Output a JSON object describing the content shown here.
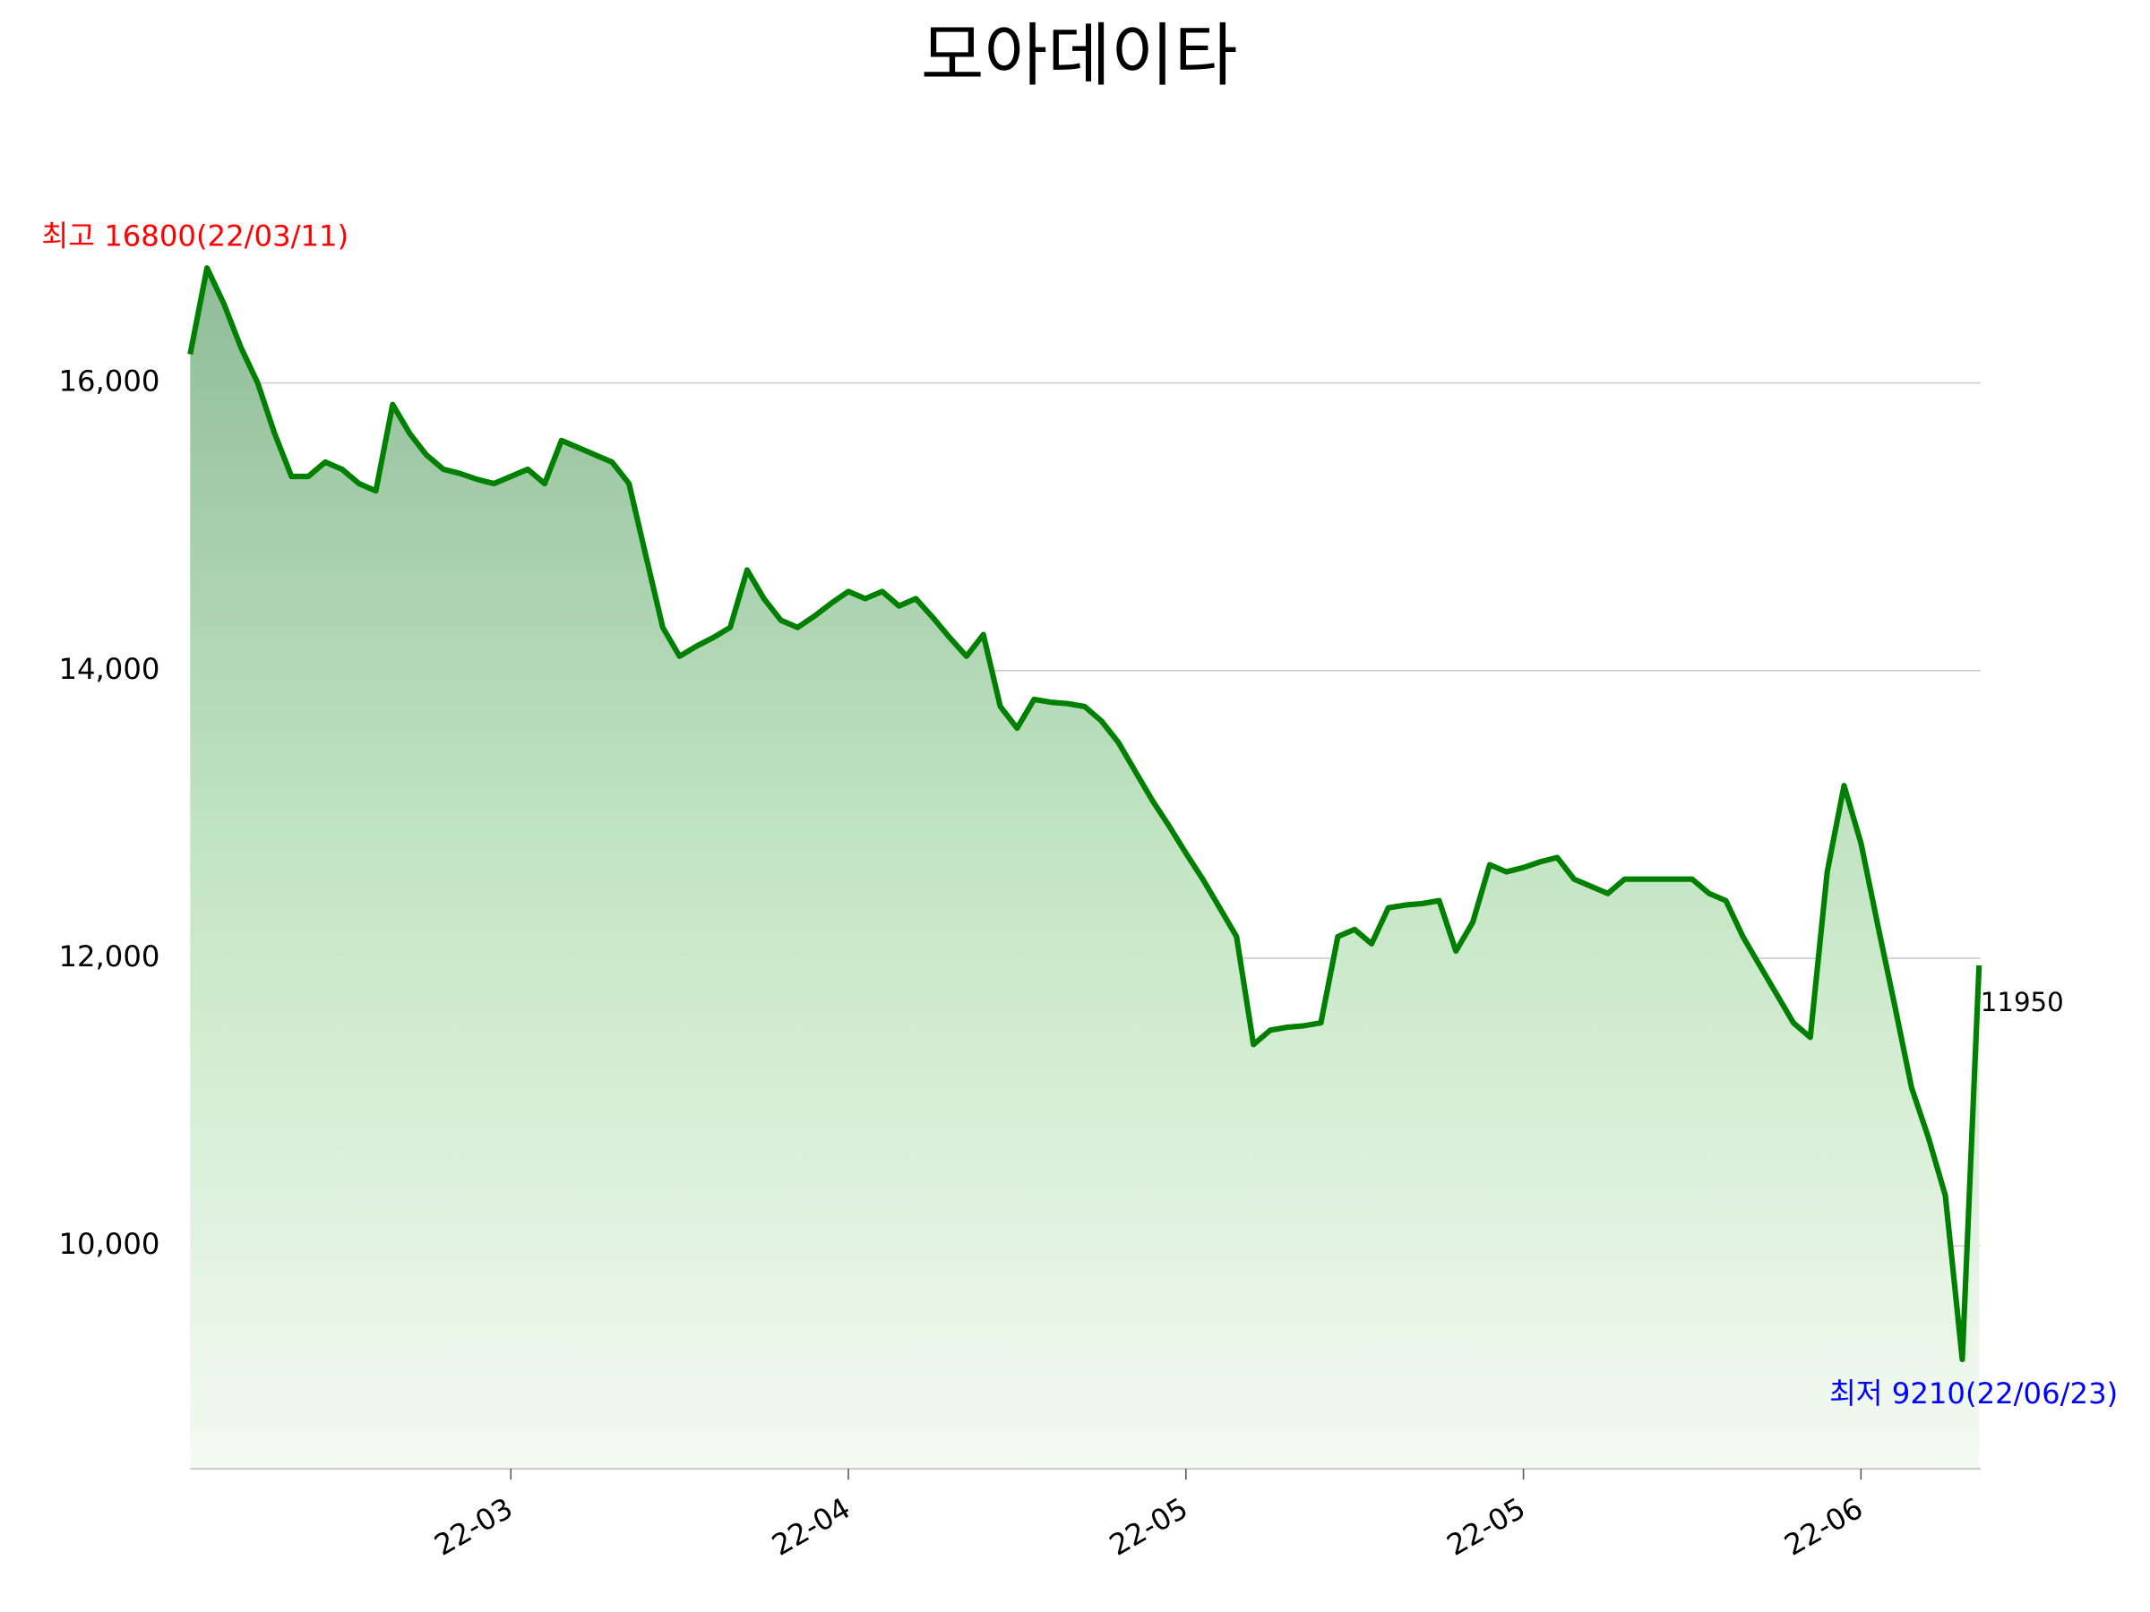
{
  "chart_data": {
    "type": "area",
    "title": "모아데이타",
    "categories": [
      null,
      null,
      null,
      null,
      null,
      null,
      null,
      null,
      null,
      null,
      null,
      null,
      null,
      null,
      null,
      null,
      null,
      null,
      null,
      "22-03",
      null,
      null,
      null,
      null,
      null,
      null,
      null,
      null,
      null,
      null,
      null,
      null,
      null,
      null,
      null,
      null,
      null,
      null,
      null,
      "22-04",
      null,
      null,
      null,
      null,
      null,
      null,
      null,
      null,
      null,
      null,
      null,
      null,
      null,
      null,
      null,
      null,
      null,
      null,
      null,
      "22-05",
      null,
      null,
      null,
      null,
      null,
      null,
      null,
      null,
      null,
      null,
      null,
      null,
      null,
      null,
      null,
      null,
      null,
      null,
      null,
      "22-05",
      null,
      null,
      null,
      null,
      null,
      null,
      null,
      null,
      null,
      null,
      null,
      null,
      null,
      null,
      null,
      null,
      null,
      null,
      null,
      "22-06",
      null,
      null,
      null,
      null,
      null,
      null,
      null
    ],
    "values": [
      16200,
      16800,
      16550,
      16250,
      16000,
      15650,
      15350,
      15350,
      15450,
      15400,
      15300,
      15250,
      15850,
      15650,
      15500,
      15400,
      15370,
      15330,
      15300,
      15350,
      15400,
      15300,
      15600,
      15550,
      15500,
      15450,
      15300,
      14800,
      14300,
      14100,
      14170,
      14230,
      14300,
      14700,
      14500,
      14350,
      14300,
      14380,
      14470,
      14550,
      14500,
      14550,
      14450,
      14500,
      14370,
      14230,
      14100,
      14250,
      13750,
      13600,
      13800,
      13780,
      13770,
      13750,
      13650,
      13500,
      13300,
      13100,
      12920,
      12730,
      12550,
      12350,
      12150,
      11400,
      11500,
      11520,
      11530,
      11550,
      12150,
      12200,
      12100,
      12350,
      12370,
      12380,
      12400,
      12050,
      12250,
      12650,
      12600,
      12630,
      12670,
      12700,
      12550,
      12500,
      12450,
      12550,
      12550,
      12550,
      12550,
      12550,
      12450,
      12400,
      12150,
      11950,
      11750,
      11550,
      11450,
      12600,
      13200,
      12800,
      12230,
      11670,
      11100,
      10750,
      10350,
      9210,
      11950
    ],
    "color": "#008000",
    "ylim": [
      8450,
      17000
    ],
    "yticks": [
      {
        "value": 10000,
        "label": "10,000"
      },
      {
        "value": 12000,
        "label": "12,000"
      },
      {
        "value": 14000,
        "label": "14,000"
      },
      {
        "value": 16000,
        "label": "16,000"
      }
    ],
    "grid": true,
    "annotations": [
      {
        "text": "최고 16800(22/03/11)",
        "color": "red"
      },
      {
        "text": "최저 9210(22/06/23)",
        "color": "blue"
      }
    ]
  }
}
